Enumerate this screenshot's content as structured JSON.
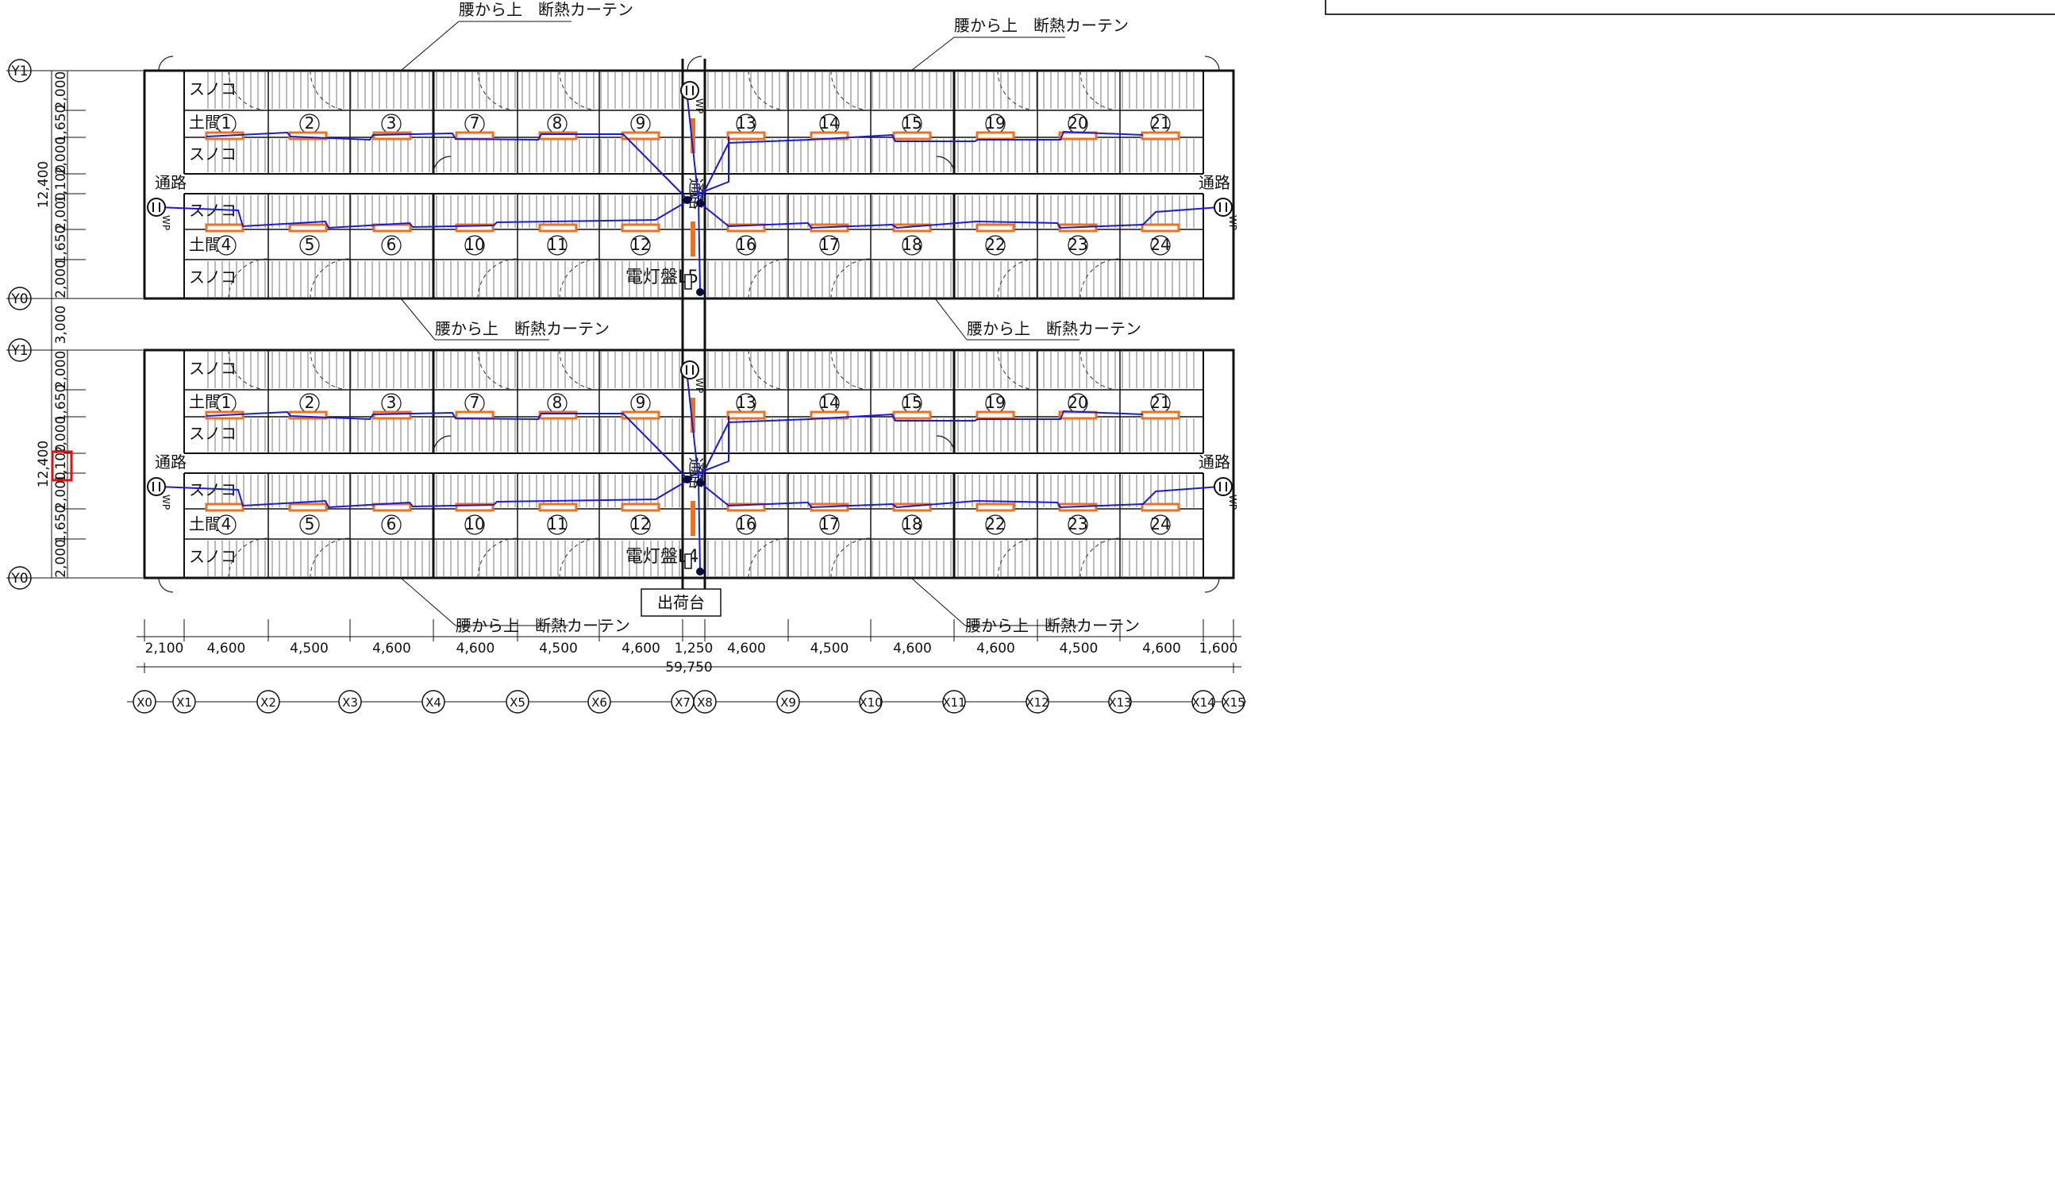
{
  "labels": {
    "suno": "スノコ",
    "doma": "土間",
    "tsuro": "通路",
    "curtain": "腰から上　断熱カーテン",
    "panel_upper": "電灯盤L5",
    "panel_lower": "電灯盤L4",
    "shipping": "出荷台",
    "corridor_vertical": "通路",
    "wp": "WP"
  },
  "pens_top_row": [
    "1",
    "2",
    "3",
    "7",
    "8",
    "9",
    "13",
    "14",
    "15",
    "19",
    "20",
    "21"
  ],
  "pens_bottom_row": [
    "4",
    "5",
    "6",
    "10",
    "11",
    "12",
    "16",
    "17",
    "18",
    "22",
    "23",
    "24"
  ],
  "grid_x": [
    "X0",
    "X1",
    "X2",
    "X3",
    "X4",
    "X5",
    "X6",
    "X7",
    "X8",
    "X9",
    "X10",
    "X11",
    "X12",
    "X13",
    "X14",
    "X15"
  ],
  "grid_y_upper": [
    "Y1",
    "Y0"
  ],
  "grid_y_lower": [
    "Y1",
    "Y0"
  ],
  "dims_horizontal": [
    "2,100",
    "4,600",
    "4,500",
    "4,600",
    "4,600",
    "4,500",
    "4,600",
    "1,250",
    "4,600",
    "4,500",
    "4,600",
    "4,600",
    "4,500",
    "4,600",
    "1,600"
  ],
  "dim_total": "59,750",
  "dims_vertical_upper": [
    "2,000",
    "1,650",
    "2,000",
    "1,100",
    "2,000",
    "1,650",
    "2,000"
  ],
  "dim_gap": "3,000",
  "dims_vertical_lower": [
    "2,000",
    "1,650",
    "2,000",
    "1,100",
    "2,000",
    "1,650",
    "2,000"
  ],
  "dim_total_vertical": "12,400",
  "highlight_label": "1,100",
  "colors": {
    "wiring": "#1a1adc",
    "fixture": "#f07020",
    "highlight": "#e01010",
    "line": "#111111"
  }
}
